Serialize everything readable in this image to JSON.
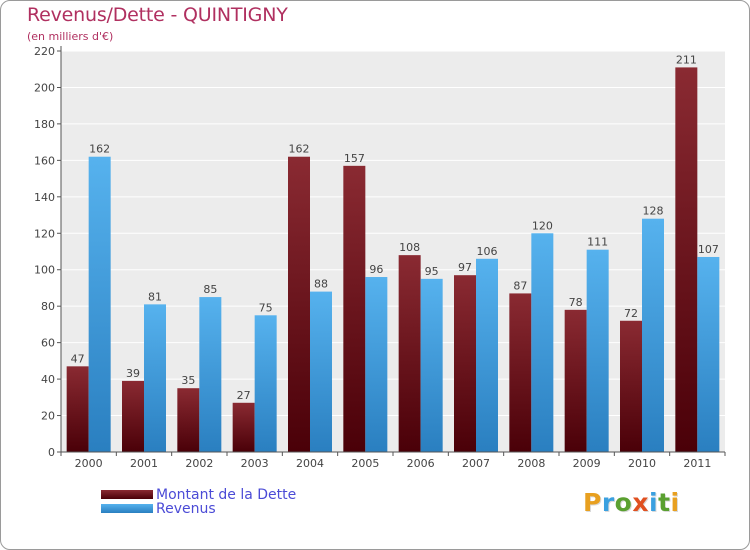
{
  "title": "Revenus/Dette - QUINTIGNY",
  "subtitle": "(en milliers d'€)",
  "logo_text": "Proxiti",
  "colors": {
    "debt": "#7a1a22",
    "debt_dark": "#4a0008",
    "revenue": "#4aa8e8",
    "revenue_dark": "#2a86c8",
    "title": "#b03060",
    "legend_text": "#4b4bd6"
  },
  "chart_data": {
    "type": "bar",
    "title": "Revenus/Dette - QUINTIGNY",
    "ylabel": "(en milliers d'€)",
    "xlabel": "",
    "ylim": [
      0,
      220
    ],
    "yticks": [
      0,
      20,
      40,
      60,
      80,
      100,
      120,
      140,
      160,
      180,
      200,
      220
    ],
    "grid": true,
    "legend_position": "bottom-left",
    "categories": [
      "2000",
      "2001",
      "2002",
      "2003",
      "2004",
      "2005",
      "2006",
      "2007",
      "2008",
      "2009",
      "2010",
      "2011"
    ],
    "series": [
      {
        "name": "Montant de la Dette",
        "values": [
          47,
          39,
          35,
          27,
          162,
          157,
          108,
          97,
          87,
          78,
          72,
          211
        ]
      },
      {
        "name": "Revenus",
        "values": [
          162,
          81,
          85,
          75,
          88,
          96,
          95,
          106,
          120,
          111,
          128,
          107
        ]
      }
    ]
  }
}
